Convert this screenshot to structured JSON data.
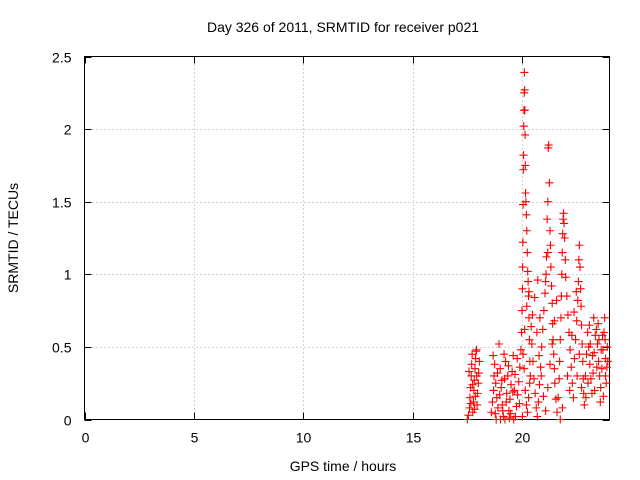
{
  "chart_data": {
    "type": "scatter",
    "title": "Day 326 of 2011, SRMTID for receiver p021",
    "xlabel": "GPS time / hours",
    "ylabel": "SRMTID / TECUs",
    "xlim": [
      0,
      24
    ],
    "ylim": [
      0,
      2.5
    ],
    "xticks": [
      0,
      5,
      10,
      15,
      20
    ],
    "xtick_labels": [
      "0",
      "5",
      "10",
      "15",
      "20"
    ],
    "yticks": [
      0,
      0.5,
      1,
      1.5,
      2,
      2.5
    ],
    "ytick_labels": [
      "0",
      "0.5",
      "1",
      "1.5",
      "2",
      "2.5"
    ],
    "grid": true,
    "marker": "plus",
    "series_color": "#ff0000",
    "points": [
      [
        17.5,
        0.0
      ],
      [
        17.55,
        0.03
      ],
      [
        17.6,
        0.08
      ],
      [
        17.62,
        0.15
      ],
      [
        17.65,
        0.22
      ],
      [
        17.68,
        0.3
      ],
      [
        17.7,
        0.38
      ],
      [
        17.72,
        0.45
      ],
      [
        17.75,
        0.05
      ],
      [
        17.78,
        0.12
      ],
      [
        17.8,
        0.2
      ],
      [
        17.82,
        0.27
      ],
      [
        17.85,
        0.35
      ],
      [
        17.88,
        0.42
      ],
      [
        17.9,
        0.47
      ],
      [
        17.92,
        0.48
      ],
      [
        17.95,
        0.1
      ],
      [
        17.97,
        0.18
      ],
      [
        18.0,
        0.25
      ],
      [
        18.02,
        0.32
      ],
      [
        18.05,
        0.4
      ],
      [
        17.58,
        0.33
      ],
      [
        17.66,
        0.11
      ],
      [
        17.74,
        0.24
      ],
      [
        17.83,
        0.07
      ],
      [
        17.93,
        0.3
      ],
      [
        17.87,
        0.16
      ],
      [
        18.6,
        0.05
      ],
      [
        18.65,
        0.12
      ],
      [
        18.7,
        0.2
      ],
      [
        18.72,
        0.3
      ],
      [
        18.75,
        0.38
      ],
      [
        18.8,
        0.25
      ],
      [
        18.85,
        0.15
      ],
      [
        18.9,
        0.08
      ],
      [
        18.95,
        0.52
      ],
      [
        19.0,
        0.35
      ],
      [
        19.05,
        0.22
      ],
      [
        19.1,
        0.1
      ],
      [
        19.15,
        0.02
      ],
      [
        19.2,
        0.28
      ],
      [
        19.25,
        0.4
      ],
      [
        19.3,
        0.18
      ],
      [
        19.35,
        0.3
      ],
      [
        19.4,
        0.06
      ],
      [
        19.45,
        0.14
      ],
      [
        19.5,
        0.24
      ],
      [
        19.55,
        0.33
      ],
      [
        19.6,
        0.44
      ],
      [
        19.65,
        0.2
      ],
      [
        19.7,
        0.02
      ],
      [
        19.75,
        0.09
      ],
      [
        19.8,
        0.17
      ],
      [
        19.85,
        0.26
      ],
      [
        19.9,
        0.36
      ],
      [
        19.95,
        0.48
      ],
      [
        18.68,
        0.44
      ],
      [
        18.78,
        0.04
      ],
      [
        18.88,
        0.32
      ],
      [
        18.98,
        0.17
      ],
      [
        19.08,
        0.27
      ],
      [
        19.18,
        0.45
      ],
      [
        19.28,
        0.12
      ],
      [
        19.38,
        0.37
      ],
      [
        19.48,
        0.04
      ],
      [
        19.58,
        0.19
      ],
      [
        19.68,
        0.31
      ],
      [
        19.78,
        0.42
      ],
      [
        19.88,
        0.11
      ],
      [
        19.12,
        0.06
      ],
      [
        19.22,
        0.0
      ],
      [
        19.42,
        0.01
      ],
      [
        19.62,
        0.0
      ],
      [
        18.82,
        0.0
      ],
      [
        19.02,
        0.0
      ],
      [
        19.98,
        0.6
      ],
      [
        20.0,
        0.75
      ],
      [
        20.02,
        0.9
      ],
      [
        20.03,
        1.05
      ],
      [
        20.04,
        1.22
      ],
      [
        20.05,
        1.48
      ],
      [
        20.06,
        1.72
      ],
      [
        20.07,
        1.82
      ],
      [
        20.08,
        2.02
      ],
      [
        20.09,
        2.13
      ],
      [
        20.1,
        2.25
      ],
      [
        20.11,
        2.39
      ],
      [
        20.12,
        2.27
      ],
      [
        20.13,
        2.13
      ],
      [
        20.14,
        1.96
      ],
      [
        20.15,
        1.75
      ],
      [
        20.16,
        1.56
      ],
      [
        20.18,
        1.5
      ],
      [
        20.2,
        1.41
      ],
      [
        20.22,
        1.3
      ],
      [
        20.24,
        1.15
      ],
      [
        20.26,
        1.02
      ],
      [
        20.28,
        0.95
      ],
      [
        20.3,
        0.85
      ],
      [
        20.32,
        0.7
      ],
      [
        20.34,
        0.55
      ],
      [
        20.36,
        0.4
      ],
      [
        20.38,
        0.3
      ],
      [
        20.05,
        0.45
      ],
      [
        20.1,
        0.35
      ],
      [
        20.15,
        0.2
      ],
      [
        20.2,
        0.1
      ],
      [
        20.25,
        0.05
      ],
      [
        20.3,
        0.15
      ],
      [
        20.35,
        0.25
      ],
      [
        20.12,
        0.62
      ],
      [
        20.22,
        0.78
      ],
      [
        20.32,
        0.88
      ],
      [
        20.42,
        0.64
      ],
      [
        20.02,
        0.02
      ],
      [
        20.45,
        0.52
      ],
      [
        20.5,
        0.4
      ],
      [
        20.55,
        0.28
      ],
      [
        20.6,
        0.18
      ],
      [
        20.65,
        0.08
      ],
      [
        20.7,
        0.02
      ],
      [
        20.75,
        0.12
      ],
      [
        20.8,
        0.24
      ],
      [
        20.85,
        0.36
      ],
      [
        20.9,
        0.5
      ],
      [
        20.95,
        0.62
      ],
      [
        21.0,
        0.75
      ],
      [
        21.05,
        0.87
      ],
      [
        21.1,
        1.0
      ],
      [
        21.12,
        1.12
      ],
      [
        21.15,
        1.38
      ],
      [
        21.18,
        1.5
      ],
      [
        21.2,
        1.87
      ],
      [
        21.22,
        1.89
      ],
      [
        21.25,
        1.63
      ],
      [
        21.28,
        1.3
      ],
      [
        21.3,
        1.2
      ],
      [
        21.32,
        1.05
      ],
      [
        21.35,
        0.92
      ],
      [
        21.38,
        0.8
      ],
      [
        21.4,
        0.66
      ],
      [
        21.42,
        0.55
      ],
      [
        21.45,
        0.45
      ],
      [
        21.48,
        0.35
      ],
      [
        21.5,
        0.25
      ],
      [
        21.55,
        0.14
      ],
      [
        21.6,
        0.05
      ],
      [
        20.48,
        0.72
      ],
      [
        20.58,
        0.84
      ],
      [
        20.68,
        0.6
      ],
      [
        20.78,
        0.44
      ],
      [
        20.88,
        0.3
      ],
      [
        20.98,
        0.16
      ],
      [
        21.08,
        0.06
      ],
      [
        21.18,
        0.22
      ],
      [
        21.28,
        0.38
      ],
      [
        21.38,
        0.52
      ],
      [
        21.48,
        0.68
      ],
      [
        21.58,
        0.82
      ],
      [
        21.08,
        0.95
      ],
      [
        21.18,
        1.15
      ],
      [
        20.72,
        0.96
      ],
      [
        20.82,
        0.7
      ],
      [
        21.65,
        0.15
      ],
      [
        21.7,
        0.28
      ],
      [
        21.72,
        0.4
      ],
      [
        21.75,
        0.55
      ],
      [
        21.78,
        0.7
      ],
      [
        21.8,
        0.85
      ],
      [
        21.82,
        1.0
      ],
      [
        21.84,
        1.15
      ],
      [
        21.86,
        1.28
      ],
      [
        21.88,
        1.38
      ],
      [
        21.9,
        1.42
      ],
      [
        21.92,
        1.35
      ],
      [
        21.95,
        1.25
      ],
      [
        21.98,
        1.1
      ],
      [
        22.0,
        0.98
      ],
      [
        22.05,
        0.85
      ],
      [
        22.1,
        0.72
      ],
      [
        22.15,
        0.6
      ],
      [
        22.2,
        0.48
      ],
      [
        22.25,
        0.36
      ],
      [
        22.3,
        0.25
      ],
      [
        22.35,
        0.15
      ],
      [
        22.4,
        0.42
      ],
      [
        22.45,
        0.55
      ],
      [
        22.5,
        0.68
      ],
      [
        22.55,
        0.82
      ],
      [
        22.58,
        0.95
      ],
      [
        22.6,
        1.1
      ],
      [
        22.62,
        1.2
      ],
      [
        22.65,
        1.05
      ],
      [
        22.68,
        0.9
      ],
      [
        22.7,
        0.78
      ],
      [
        22.72,
        0.65
      ],
      [
        22.75,
        0.52
      ],
      [
        22.78,
        0.4
      ],
      [
        22.8,
        0.28
      ],
      [
        22.82,
        0.18
      ],
      [
        22.85,
        0.1
      ],
      [
        21.75,
        0.0
      ],
      [
        21.85,
        0.08
      ],
      [
        22.08,
        0.3
      ],
      [
        22.18,
        0.2
      ],
      [
        22.28,
        0.58
      ],
      [
        22.38,
        0.74
      ],
      [
        22.48,
        0.88
      ],
      [
        22.52,
        0.3
      ],
      [
        22.62,
        0.45
      ],
      [
        22.72,
        0.22
      ],
      [
        22.9,
        0.3
      ],
      [
        22.95,
        0.45
      ],
      [
        23.0,
        0.6
      ],
      [
        23.05,
        0.5
      ],
      [
        23.1,
        0.38
      ],
      [
        23.15,
        0.28
      ],
      [
        23.2,
        0.18
      ],
      [
        23.25,
        0.32
      ],
      [
        23.3,
        0.46
      ],
      [
        23.35,
        0.58
      ],
      [
        23.4,
        0.62
      ],
      [
        23.45,
        0.52
      ],
      [
        23.5,
        0.4
      ],
      [
        23.55,
        0.3
      ],
      [
        23.6,
        0.22
      ],
      [
        23.65,
        0.35
      ],
      [
        23.7,
        0.48
      ],
      [
        23.75,
        0.6
      ],
      [
        23.78,
        0.7
      ],
      [
        23.8,
        0.55
      ],
      [
        23.82,
        0.42
      ],
      [
        23.85,
        0.25
      ],
      [
        23.88,
        0.36
      ],
      [
        23.9,
        0.5
      ],
      [
        22.92,
        0.15
      ],
      [
        23.02,
        0.25
      ],
      [
        23.12,
        0.52
      ],
      [
        23.22,
        0.44
      ],
      [
        23.32,
        0.2
      ],
      [
        23.42,
        0.36
      ],
      [
        23.52,
        0.55
      ],
      [
        23.62,
        0.48
      ],
      [
        23.72,
        0.16
      ],
      [
        23.82,
        0.3
      ],
      [
        23.92,
        0.4
      ],
      [
        23.08,
        0.65
      ],
      [
        23.28,
        0.7
      ],
      [
        23.48,
        0.66
      ],
      [
        23.68,
        0.58
      ],
      [
        23.58,
        0.12
      ]
    ]
  }
}
